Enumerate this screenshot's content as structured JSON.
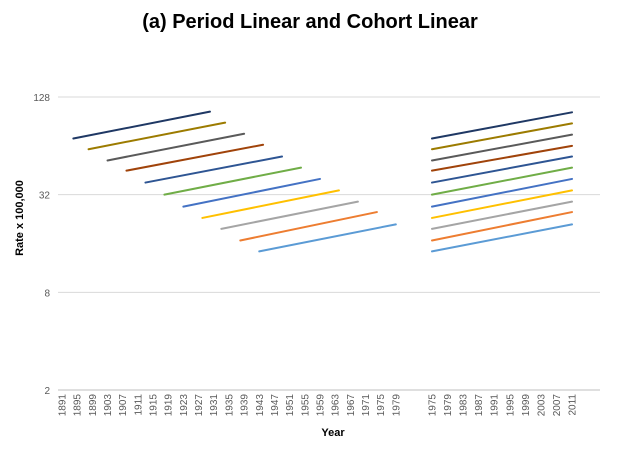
{
  "chart_data": {
    "type": "line",
    "title": "(a) Period Linear and Cohort Linear",
    "xlabel": "Year",
    "ylabel": "Rate x 100,000",
    "yscale": "log2",
    "ylim": [
      2,
      128
    ],
    "yticks": [
      "2",
      "8",
      "32",
      "128"
    ],
    "grid": true,
    "legend": "none",
    "panels": [
      {
        "xlim": [
          1891,
          1983
        ],
        "xticks": [
          "1891",
          "1895",
          "1899",
          "1903",
          "1907",
          "1911",
          "1915",
          "1919",
          "1923",
          "1927",
          "1931",
          "1935",
          "1939",
          "1943",
          "1947",
          "1951",
          "1955",
          "1959",
          "1963",
          "1967",
          "1971",
          "1975",
          "1979"
        ]
      },
      {
        "xlim": [
          1975,
          2011
        ],
        "xticks": [
          "1975",
          "1979",
          "1983",
          "1987",
          "1991",
          "1995",
          "1999",
          "2003",
          "2007",
          "2011"
        ]
      }
    ],
    "series": [
      {
        "color": "#1f3864",
        "left": {
          "x": [
            1894,
            1930
          ],
          "y": [
            71,
            104
          ]
        },
        "right": {
          "x": [
            1975,
            2011
          ],
          "y": [
            71,
            103
          ]
        }
      },
      {
        "color": "#9c7b00",
        "left": {
          "x": [
            1898,
            1934
          ],
          "y": [
            61,
            89
          ]
        },
        "right": {
          "x": [
            1975,
            2011
          ],
          "y": [
            61,
            88
          ]
        }
      },
      {
        "color": "#5a5a5a",
        "left": {
          "x": [
            1903,
            1939
          ],
          "y": [
            52,
            76
          ]
        },
        "right": {
          "x": [
            1975,
            2011
          ],
          "y": [
            52,
            75
          ]
        }
      },
      {
        "color": "#a0430a",
        "left": {
          "x": [
            1908,
            1944
          ],
          "y": [
            45,
            65
          ]
        },
        "right": {
          "x": [
            1975,
            2011
          ],
          "y": [
            45,
            64
          ]
        }
      },
      {
        "color": "#2e5593",
        "left": {
          "x": [
            1913,
            1949
          ],
          "y": [
            38,
            55
          ]
        },
        "right": {
          "x": [
            1975,
            2011
          ],
          "y": [
            38,
            55
          ]
        }
      },
      {
        "color": "#70ad47",
        "left": {
          "x": [
            1918,
            1954
          ],
          "y": [
            32,
            47
          ]
        },
        "right": {
          "x": [
            1975,
            2011
          ],
          "y": [
            32,
            47
          ]
        }
      },
      {
        "color": "#4472c4",
        "left": {
          "x": [
            1923,
            1959
          ],
          "y": [
            27,
            40
          ]
        },
        "right": {
          "x": [
            1975,
            2011
          ],
          "y": [
            27,
            40
          ]
        }
      },
      {
        "color": "#ffc000",
        "left": {
          "x": [
            1928,
            1964
          ],
          "y": [
            23,
            34
          ]
        },
        "right": {
          "x": [
            1975,
            2011
          ],
          "y": [
            23,
            34
          ]
        }
      },
      {
        "color": "#a5a5a5",
        "left": {
          "x": [
            1933,
            1969
          ],
          "y": [
            19.7,
            29
          ]
        },
        "right": {
          "x": [
            1975,
            2011
          ],
          "y": [
            19.7,
            29
          ]
        }
      },
      {
        "color": "#ed7d31",
        "left": {
          "x": [
            1938,
            1974
          ],
          "y": [
            16.7,
            25
          ]
        },
        "right": {
          "x": [
            1975,
            2011
          ],
          "y": [
            16.7,
            25
          ]
        }
      },
      {
        "color": "#5b9bd5",
        "left": {
          "x": [
            1943,
            1979
          ],
          "y": [
            14.3,
            21
          ]
        },
        "right": {
          "x": [
            1975,
            2011
          ],
          "y": [
            14.3,
            21
          ]
        }
      }
    ]
  }
}
